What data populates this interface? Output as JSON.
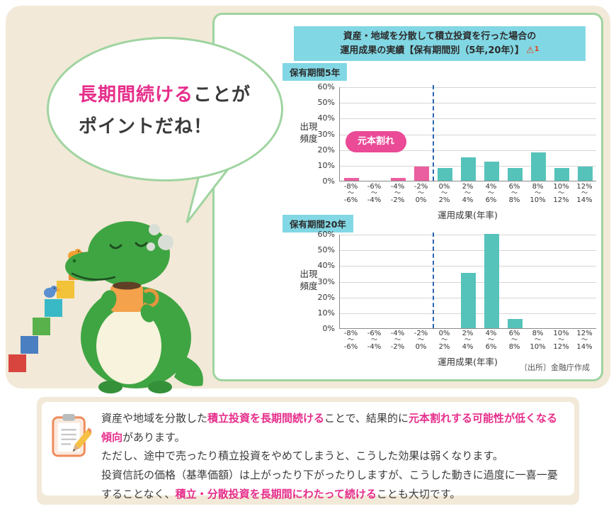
{
  "colors": {
    "pink_text": "#e62e8b",
    "pink_bar": "#ea5f9f",
    "pink_badge": "#ea4a96",
    "teal_bar": "#56c3ba",
    "cyan_label": "#82d7e4",
    "green_border": "#9fd4a0",
    "beige": "#f2e9d8",
    "dashed_line": "#2b64ad",
    "warning_red": "#e0421e"
  },
  "bubble": {
    "line1_highlight": "長期間続ける",
    "line1_rest": "ことが",
    "line2": "ポイントだね！"
  },
  "panel": {
    "title_line1": "資産・地域を分散して積立投資を行った場合の",
    "title_line2": "運用成果の実績【保有期間別（5年,20年）】",
    "warning_icon": "⚠",
    "warning_number": "1",
    "source": "〔出所〕金融庁作成"
  },
  "chart_data": [
    {
      "type": "bar",
      "title": "保有期間5年",
      "ylabel": "出現頻度",
      "xlabel": "運用成果(年率)",
      "ylim": [
        0,
        60
      ],
      "ytick_labels": [
        "60%",
        "50%",
        "40%",
        "30%",
        "20%",
        "10%",
        "0%"
      ],
      "range_separator": "～",
      "categories": [
        [
          "-8%",
          "-6%"
        ],
        [
          "-6%",
          "-4%"
        ],
        [
          "-4%",
          "-2%"
        ],
        [
          "-2%",
          "0%"
        ],
        [
          "0%",
          "2%"
        ],
        [
          "2%",
          "4%"
        ],
        [
          "4%",
          "6%"
        ],
        [
          "6%",
          "8%"
        ],
        [
          "8%",
          "10%"
        ],
        [
          "10%",
          "12%"
        ],
        [
          "12%",
          "14%"
        ]
      ],
      "values": [
        2,
        0,
        2,
        9,
        8,
        15,
        12,
        8,
        18,
        8,
        9
      ],
      "bar_palette": [
        "pink",
        "pink",
        "pink",
        "pink",
        "teal",
        "teal",
        "teal",
        "teal",
        "teal",
        "teal",
        "teal"
      ],
      "annotation": "元本割れ",
      "zero_line_boundary_index": 4,
      "grid": true
    },
    {
      "type": "bar",
      "title": "保有期間20年",
      "ylabel": "出現頻度",
      "xlabel": "運用成果(年率)",
      "ylim": [
        0,
        60
      ],
      "ytick_labels": [
        "60%",
        "50%",
        "40%",
        "30%",
        "20%",
        "10%",
        "0%"
      ],
      "range_separator": "～",
      "categories": [
        [
          "-8%",
          "-6%"
        ],
        [
          "-6%",
          "-4%"
        ],
        [
          "-4%",
          "-2%"
        ],
        [
          "-2%",
          "0%"
        ],
        [
          "0%",
          "2%"
        ],
        [
          "2%",
          "4%"
        ],
        [
          "4%",
          "6%"
        ],
        [
          "6%",
          "8%"
        ],
        [
          "8%",
          "10%"
        ],
        [
          "10%",
          "12%"
        ],
        [
          "12%",
          "14%"
        ]
      ],
      "values": [
        0,
        0,
        0,
        0,
        0,
        35,
        60,
        6,
        0,
        0,
        0
      ],
      "bar_palette": [
        "teal",
        "teal",
        "teal",
        "teal",
        "teal",
        "teal",
        "teal",
        "teal",
        "teal",
        "teal",
        "teal"
      ],
      "annotation": null,
      "zero_line_boundary_index": 4,
      "grid": true
    }
  ],
  "note": {
    "paragraphs": [
      [
        {
          "text": "資産や地域を分散した"
        },
        {
          "text": "積立投資を長期間続ける",
          "highlight": true
        },
        {
          "text": "ことで、結果的に"
        },
        {
          "text": "元本割れする可能性が低くなる傾向",
          "highlight": true
        },
        {
          "text": "があります。"
        }
      ],
      [
        {
          "text": "ただし、途中で売ったり積立投資をやめてしまうと、こうした効果は弱くなります。"
        }
      ],
      [
        {
          "text": "投資信託の価格（基準価額）は上がったり下がったりしますが、こうした動きに過度に一喜一憂することなく、"
        },
        {
          "text": "積立・分散投資を長期間にわたって続ける",
          "highlight": true
        },
        {
          "text": "ことも大切です。"
        }
      ]
    ]
  }
}
